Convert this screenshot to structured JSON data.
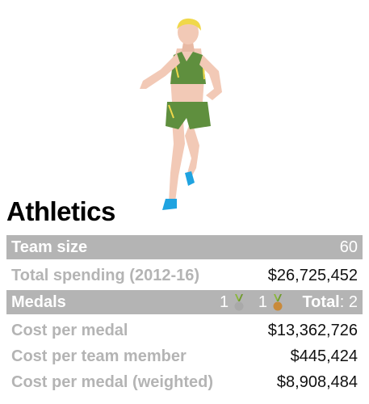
{
  "title": "Athletics",
  "team_size": {
    "label": "Team size",
    "value": "60"
  },
  "total_spending": {
    "label": "Total spending (2012-16)",
    "value": "$26,725,452"
  },
  "medals": {
    "label": "Medals",
    "silver_count": "1",
    "bronze_count": "1",
    "total_label": "Total",
    "total_sep": ":",
    "total_value": "2"
  },
  "cost_per_medal": {
    "label": "Cost per medal",
    "value": "$13,362,726"
  },
  "cost_per_member": {
    "label": "Cost per team member",
    "value": "$445,424"
  },
  "cost_weighted": {
    "label": "Cost per medal (weighted)",
    "value": "$8,908,484"
  },
  "colors": {
    "header_bar": "#b4b4b4",
    "singlet": "#5f8f3e",
    "skin": "#f2c9b6",
    "hair": "#f0d84a",
    "shoe": "#1fa3e0",
    "silver": "#a9a9a9",
    "bronze": "#c98a3a",
    "ribbon": "#8ab83a"
  }
}
